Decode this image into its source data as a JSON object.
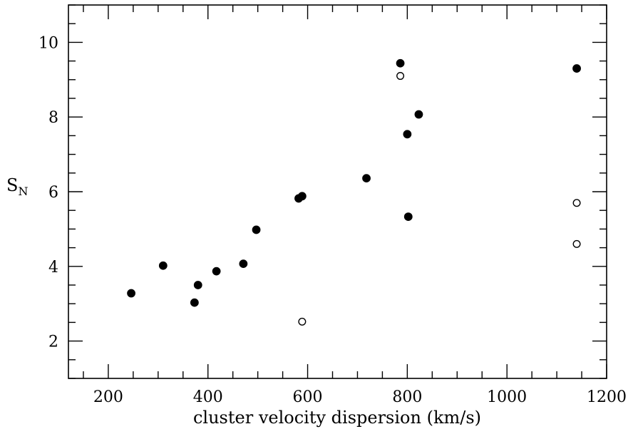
{
  "chart_data": {
    "type": "scatter",
    "title": "",
    "xlabel": "cluster velocity dispersion (km/s)",
    "ylabel": "S",
    "ylabel_sub": "N",
    "xlim": [
      120,
      1200
    ],
    "ylim": [
      1,
      11
    ],
    "xticks": [
      200,
      400,
      600,
      800,
      1000,
      1200
    ],
    "xticks_minor_step": 50,
    "yticks": [
      2,
      4,
      6,
      8,
      10
    ],
    "yticks_minor_step": 0.5,
    "grid": false,
    "series": [
      {
        "marker": "filled-circle",
        "color": "#000000",
        "points": [
          [
            246,
            3.28
          ],
          [
            310,
            4.02
          ],
          [
            373,
            3.03
          ],
          [
            380,
            3.5
          ],
          [
            417,
            3.87
          ],
          [
            471,
            4.07
          ],
          [
            497,
            4.98
          ],
          [
            582,
            5.82
          ],
          [
            589,
            5.88
          ],
          [
            718,
            6.36
          ],
          [
            786,
            9.44
          ],
          [
            800,
            7.54
          ],
          [
            802,
            5.33
          ],
          [
            823,
            8.07
          ],
          [
            1140,
            9.3
          ]
        ]
      },
      {
        "marker": "open-circle",
        "color": "#000000",
        "points": [
          [
            589,
            2.52
          ],
          [
            786,
            9.1
          ],
          [
            1140,
            5.7
          ],
          [
            1140,
            4.6
          ]
        ]
      }
    ]
  }
}
